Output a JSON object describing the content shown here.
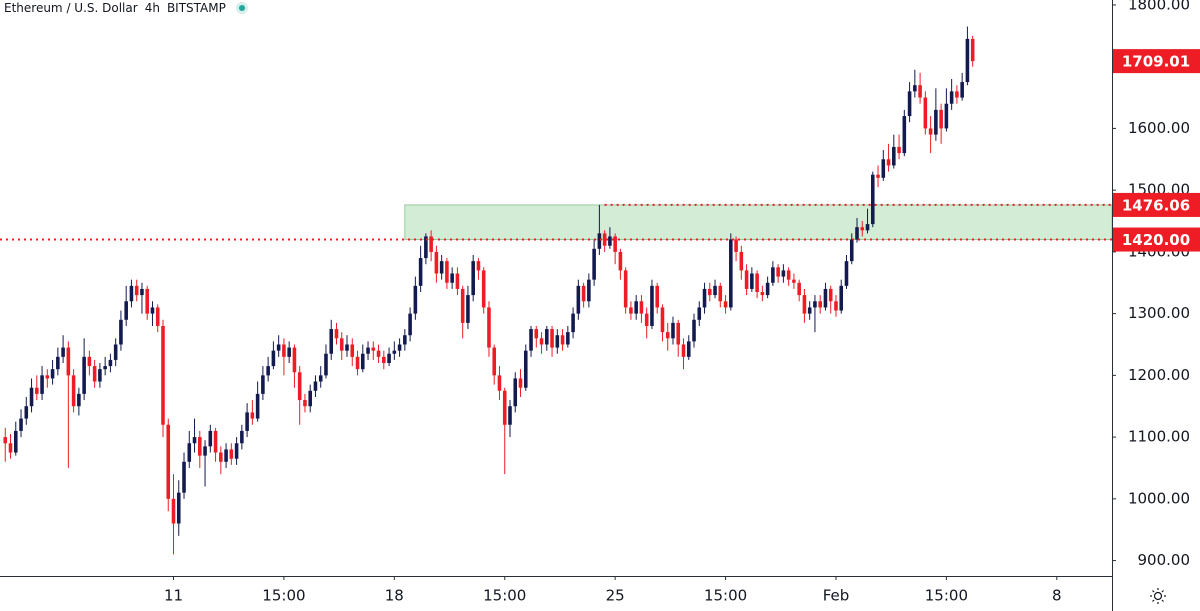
{
  "chart_data": {
    "type": "candlestick",
    "title": "Ethereum / U.S. Dollar",
    "interval": "4h",
    "exchange": "BITSTAMP",
    "up_color": "#131a4f",
    "down_color": "#ee1c25",
    "level_color": "#ee1c25",
    "zone_color": "#d3ecd5",
    "xlim": [
      -1,
      210.5
    ],
    "ylim": [
      875,
      1808
    ],
    "xticks": [
      {
        "value": 32,
        "label": "11"
      },
      {
        "value": 53,
        "label": "15:00"
      },
      {
        "value": 74,
        "label": "18"
      },
      {
        "value": 95,
        "label": "15:00"
      },
      {
        "value": 116,
        "label": "25"
      },
      {
        "value": 137,
        "label": "15:00"
      },
      {
        "value": 158,
        "label": "Feb"
      },
      {
        "value": 179,
        "label": "15:00"
      },
      {
        "value": 200,
        "label": "8"
      }
    ],
    "yticks": [
      {
        "value": 900,
        "label": "900.00"
      },
      {
        "value": 1000,
        "label": "1000.00"
      },
      {
        "value": 1100,
        "label": "1100.00"
      },
      {
        "value": 1200,
        "label": "1200.00"
      },
      {
        "value": 1300,
        "label": "1300.00"
      },
      {
        "value": 1400,
        "label": "1400.00"
      },
      {
        "value": 1500,
        "label": "1500.00"
      },
      {
        "value": 1600,
        "label": "1600.00"
      },
      {
        "value": 1700,
        "label": "1700.00"
      },
      {
        "value": 1800,
        "label": "1800.00"
      }
    ],
    "zone": {
      "low": 1420,
      "high": 1476.06,
      "start": 76
    },
    "levels": [
      {
        "value": 1420,
        "label": "1420.00"
      },
      {
        "value": 1476.06,
        "label": "1476.06",
        "start": 114
      }
    ],
    "last_price": {
      "value": 1709.01,
      "label": "1709.01"
    },
    "open": [
      1100,
      1090,
      1075,
      1110,
      1130,
      1150,
      1180,
      1170,
      1200,
      1195,
      1210,
      1230,
      1245,
      1200,
      1150,
      1170,
      1230,
      1215,
      1190,
      1210,
      1215,
      1225,
      1250,
      1290,
      1320,
      1345,
      1330,
      1340,
      1300,
      1310,
      1280,
      1120,
      1000,
      960,
      1010,
      1060,
      1090,
      1100,
      1070,
      1085,
      1110,
      1075,
      1060,
      1080,
      1065,
      1090,
      1110,
      1140,
      1130,
      1170,
      1200,
      1215,
      1240,
      1250,
      1230,
      1245,
      1205,
      1160,
      1150,
      1175,
      1190,
      1200,
      1235,
      1275,
      1260,
      1240,
      1250,
      1230,
      1210,
      1235,
      1245,
      1240,
      1230,
      1220,
      1235,
      1240,
      1250,
      1265,
      1300,
      1345,
      1390,
      1425,
      1400,
      1365,
      1385,
      1350,
      1365,
      1340,
      1285,
      1330,
      1385,
      1370,
      1310,
      1245,
      1200,
      1175,
      1120,
      1150,
      1195,
      1180,
      1240,
      1275,
      1260,
      1250,
      1275,
      1245,
      1265,
      1250,
      1270,
      1300,
      1345,
      1320,
      1355,
      1405,
      1430,
      1410,
      1425,
      1400,
      1370,
      1310,
      1300,
      1320,
      1300,
      1280,
      1345,
      1310,
      1270,
      1260,
      1285,
      1250,
      1230,
      1255,
      1290,
      1310,
      1340,
      1330,
      1345,
      1320,
      1310,
      1420,
      1400,
      1370,
      1340,
      1365,
      1335,
      1330,
      1350,
      1375,
      1360,
      1370,
      1355,
      1350,
      1330,
      1300,
      1310,
      1320,
      1310,
      1340,
      1320,
      1305,
      1345,
      1385,
      1420,
      1440,
      1435,
      1445,
      1525,
      1520,
      1550,
      1540,
      1570,
      1560,
      1620,
      1660,
      1670,
      1650,
      1600,
      1590,
      1630,
      1600,
      1640,
      1660,
      1650,
      1675,
      1745
    ],
    "high": [
      1115,
      1105,
      1125,
      1145,
      1165,
      1195,
      1200,
      1215,
      1210,
      1225,
      1245,
      1265,
      1255,
      1210,
      1180,
      1260,
      1240,
      1225,
      1220,
      1230,
      1235,
      1260,
      1305,
      1345,
      1355,
      1355,
      1350,
      1345,
      1320,
      1315,
      1290,
      1130,
      1040,
      1030,
      1075,
      1110,
      1130,
      1110,
      1095,
      1120,
      1115,
      1085,
      1090,
      1090,
      1100,
      1120,
      1155,
      1160,
      1190,
      1215,
      1230,
      1255,
      1265,
      1260,
      1255,
      1250,
      1215,
      1170,
      1185,
      1200,
      1215,
      1250,
      1290,
      1285,
      1270,
      1265,
      1260,
      1240,
      1250,
      1255,
      1255,
      1250,
      1240,
      1245,
      1255,
      1260,
      1275,
      1310,
      1360,
      1410,
      1430,
      1435,
      1410,
      1395,
      1390,
      1375,
      1375,
      1345,
      1345,
      1395,
      1390,
      1375,
      1320,
      1250,
      1215,
      1180,
      1160,
      1205,
      1210,
      1250,
      1280,
      1280,
      1270,
      1280,
      1280,
      1275,
      1275,
      1280,
      1310,
      1355,
      1350,
      1365,
      1420,
      1476.06,
      1435,
      1440,
      1430,
      1405,
      1375,
      1320,
      1330,
      1330,
      1310,
      1355,
      1350,
      1315,
      1285,
      1295,
      1290,
      1260,
      1265,
      1300,
      1320,
      1350,
      1350,
      1355,
      1350,
      1330,
      1430,
      1425,
      1410,
      1380,
      1375,
      1370,
      1345,
      1360,
      1385,
      1380,
      1380,
      1375,
      1365,
      1355,
      1340,
      1320,
      1330,
      1330,
      1350,
      1345,
      1330,
      1355,
      1395,
      1430,
      1455,
      1450,
      1470,
      1530,
      1540,
      1565,
      1575,
      1590,
      1590,
      1630,
      1675,
      1695,
      1690,
      1660,
      1620,
      1665,
      1640,
      1665,
      1680,
      1670,
      1690,
      1765,
      1750
    ],
    "low": [
      1060,
      1065,
      1070,
      1100,
      1120,
      1140,
      1160,
      1160,
      1180,
      1185,
      1200,
      1220,
      1050,
      1140,
      1135,
      1160,
      1200,
      1180,
      1180,
      1200,
      1205,
      1215,
      1240,
      1280,
      1310,
      1320,
      1300,
      1290,
      1280,
      1270,
      1100,
      980,
      910,
      940,
      1000,
      1050,
      1075,
      1050,
      1020,
      1075,
      1060,
      1040,
      1050,
      1055,
      1055,
      1080,
      1100,
      1120,
      1125,
      1160,
      1190,
      1210,
      1230,
      1200,
      1220,
      1180,
      1120,
      1140,
      1140,
      1165,
      1180,
      1195,
      1225,
      1250,
      1225,
      1230,
      1215,
      1200,
      1205,
      1225,
      1225,
      1220,
      1210,
      1215,
      1225,
      1230,
      1240,
      1255,
      1290,
      1335,
      1380,
      1385,
      1350,
      1355,
      1340,
      1340,
      1330,
      1260,
      1275,
      1320,
      1355,
      1300,
      1230,
      1185,
      1160,
      1040,
      1100,
      1140,
      1165,
      1175,
      1230,
      1245,
      1235,
      1240,
      1230,
      1235,
      1240,
      1245,
      1260,
      1290,
      1310,
      1310,
      1345,
      1395,
      1400,
      1405,
      1380,
      1355,
      1300,
      1290,
      1290,
      1285,
      1260,
      1275,
      1300,
      1255,
      1240,
      1250,
      1230,
      1210,
      1225,
      1245,
      1280,
      1300,
      1320,
      1325,
      1310,
      1300,
      1305,
      1385,
      1355,
      1330,
      1335,
      1325,
      1320,
      1325,
      1345,
      1350,
      1350,
      1345,
      1340,
      1320,
      1285,
      1290,
      1270,
      1300,
      1305,
      1300,
      1295,
      1300,
      1340,
      1380,
      1415,
      1425,
      1430,
      1440,
      1505,
      1515,
      1530,
      1535,
      1550,
      1555,
      1610,
      1650,
      1640,
      1590,
      1560,
      1580,
      1575,
      1595,
      1630,
      1640,
      1645,
      1670,
      1700
    ],
    "close": [
      1090,
      1075,
      1110,
      1130,
      1150,
      1180,
      1170,
      1200,
      1195,
      1210,
      1230,
      1245,
      1200,
      1150,
      1170,
      1230,
      1215,
      1190,
      1210,
      1215,
      1225,
      1250,
      1290,
      1320,
      1345,
      1330,
      1340,
      1300,
      1310,
      1280,
      1120,
      1000,
      960,
      1010,
      1060,
      1090,
      1100,
      1070,
      1085,
      1110,
      1075,
      1060,
      1080,
      1065,
      1090,
      1110,
      1140,
      1130,
      1170,
      1200,
      1215,
      1240,
      1250,
      1230,
      1245,
      1205,
      1160,
      1150,
      1175,
      1190,
      1200,
      1235,
      1275,
      1260,
      1240,
      1250,
      1230,
      1210,
      1235,
      1245,
      1240,
      1230,
      1220,
      1235,
      1240,
      1250,
      1265,
      1300,
      1345,
      1390,
      1425,
      1400,
      1365,
      1385,
      1350,
      1365,
      1340,
      1285,
      1330,
      1385,
      1370,
      1310,
      1245,
      1200,
      1175,
      1120,
      1150,
      1195,
      1180,
      1240,
      1275,
      1260,
      1250,
      1275,
      1245,
      1265,
      1250,
      1270,
      1300,
      1345,
      1320,
      1355,
      1405,
      1430,
      1410,
      1425,
      1400,
      1370,
      1310,
      1300,
      1320,
      1300,
      1280,
      1345,
      1310,
      1270,
      1260,
      1285,
      1250,
      1230,
      1255,
      1290,
      1310,
      1340,
      1330,
      1345,
      1320,
      1310,
      1420,
      1400,
      1370,
      1340,
      1365,
      1335,
      1330,
      1350,
      1375,
      1360,
      1370,
      1355,
      1350,
      1330,
      1300,
      1310,
      1320,
      1310,
      1340,
      1320,
      1305,
      1345,
      1385,
      1420,
      1440,
      1435,
      1445,
      1525,
      1520,
      1550,
      1540,
      1570,
      1560,
      1620,
      1660,
      1670,
      1650,
      1600,
      1590,
      1630,
      1600,
      1640,
      1660,
      1650,
      1675,
      1745,
      1709.01
    ]
  }
}
